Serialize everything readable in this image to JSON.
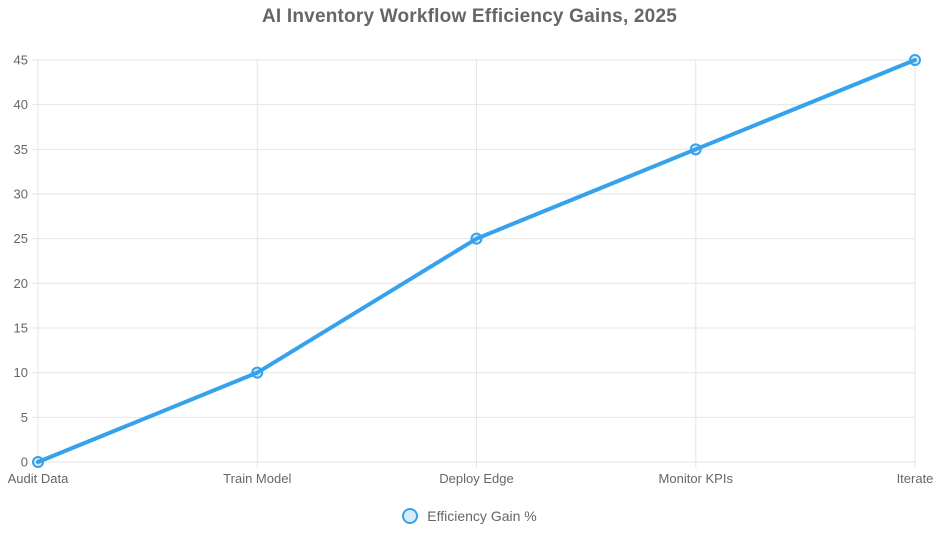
{
  "chart_data": {
    "type": "line",
    "title": "AI Inventory Workflow Efficiency Gains, 2025",
    "categories": [
      "Audit Data",
      "Train Model",
      "Deploy Edge",
      "Monitor KPIs",
      "Iterate"
    ],
    "series": [
      {
        "name": "Efficiency Gain %",
        "values": [
          0,
          10,
          25,
          35,
          45
        ]
      }
    ],
    "xlabel": "",
    "ylabel": "",
    "ylim": [
      0,
      45
    ],
    "y_ticks": [
      0,
      5,
      10,
      15,
      20,
      25,
      30,
      35,
      40,
      45
    ],
    "grid": true,
    "legend_position": "bottom"
  },
  "style": {
    "line_color": "#36A2EB",
    "point_fill": "rgba(54,162,235,0.2)",
    "grid_color": "#E6E6E6",
    "text_color": "#666666",
    "title_color": "#666666",
    "background": "#FFFFFF"
  }
}
